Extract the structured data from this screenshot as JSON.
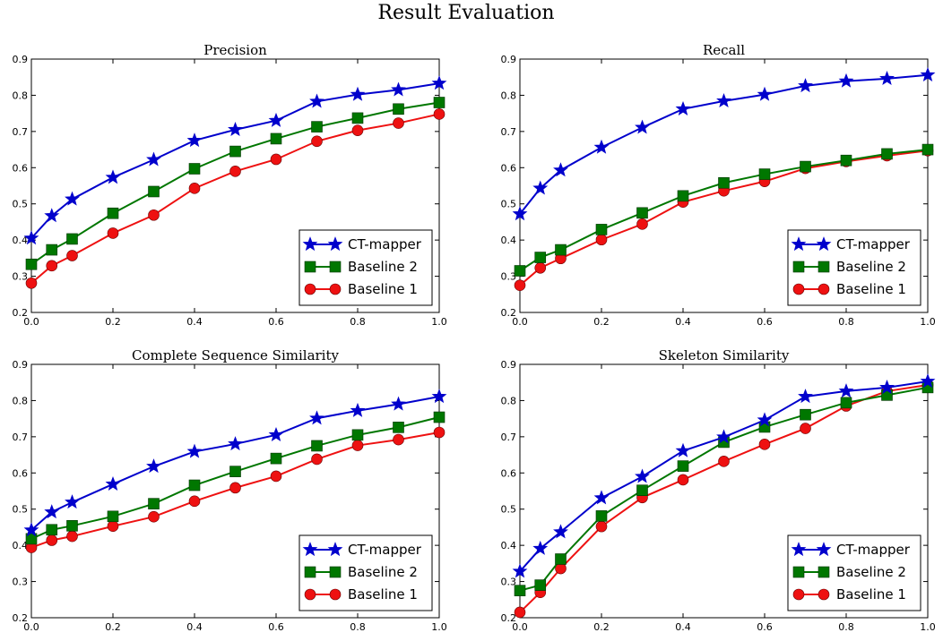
{
  "title": "Result Evaluation",
  "chart_data": [
    {
      "type": "line",
      "title": "Precision",
      "xlabel": "",
      "ylabel": "",
      "xlim": [
        0.0,
        1.0
      ],
      "ylim": [
        0.2,
        0.9
      ],
      "x": [
        0.0,
        0.05,
        0.1,
        0.2,
        0.3,
        0.4,
        0.5,
        0.6,
        0.7,
        0.8,
        0.9,
        1.0
      ],
      "xticks": [
        "0.0",
        "0.2",
        "0.4",
        "0.6",
        "0.8",
        "1.0"
      ],
      "yticks": [
        "0.2",
        "0.3",
        "0.4",
        "0.5",
        "0.6",
        "0.7",
        "0.8",
        "0.9"
      ],
      "legend_position": "lower-right",
      "series": [
        {
          "name": "CT-mapper",
          "color": "#0000cc",
          "marker": "star",
          "values": [
            0.405,
            0.467,
            0.513,
            0.573,
            0.622,
            0.675,
            0.705,
            0.73,
            0.783,
            0.802,
            0.815,
            0.833
          ]
        },
        {
          "name": "Baseline 2",
          "color": "#007700",
          "marker": "square",
          "values": [
            0.333,
            0.373,
            0.403,
            0.474,
            0.534,
            0.597,
            0.645,
            0.68,
            0.713,
            0.737,
            0.762,
            0.78
          ]
        },
        {
          "name": "Baseline 1",
          "color": "#ee1111",
          "marker": "circle",
          "values": [
            0.281,
            0.329,
            0.357,
            0.419,
            0.469,
            0.543,
            0.59,
            0.623,
            0.673,
            0.703,
            0.723,
            0.748
          ]
        }
      ]
    },
    {
      "type": "line",
      "title": "Recall",
      "xlabel": "",
      "ylabel": "",
      "xlim": [
        0.0,
        1.0
      ],
      "ylim": [
        0.2,
        0.9
      ],
      "x": [
        0.0,
        0.05,
        0.1,
        0.2,
        0.3,
        0.4,
        0.5,
        0.6,
        0.7,
        0.8,
        0.9,
        1.0
      ],
      "xticks": [
        "0.0",
        "0.2",
        "0.4",
        "0.6",
        "0.8",
        "1.0"
      ],
      "yticks": [
        "0.2",
        "0.3",
        "0.4",
        "0.5",
        "0.6",
        "0.7",
        "0.8",
        "0.9"
      ],
      "legend_position": "lower-right",
      "series": [
        {
          "name": "CT-mapper",
          "color": "#0000cc",
          "marker": "star",
          "values": [
            0.472,
            0.543,
            0.593,
            0.656,
            0.711,
            0.762,
            0.784,
            0.802,
            0.826,
            0.839,
            0.846,
            0.856
          ]
        },
        {
          "name": "Baseline 2",
          "color": "#007700",
          "marker": "square",
          "values": [
            0.315,
            0.352,
            0.373,
            0.429,
            0.475,
            0.522,
            0.558,
            0.582,
            0.603,
            0.62,
            0.638,
            0.65
          ]
        },
        {
          "name": "Baseline 1",
          "color": "#ee1111",
          "marker": "circle",
          "values": [
            0.275,
            0.323,
            0.349,
            0.401,
            0.444,
            0.505,
            0.536,
            0.562,
            0.598,
            0.617,
            0.633,
            0.647
          ]
        }
      ]
    },
    {
      "type": "line",
      "title": "Complete Sequence Similarity",
      "xlabel": "",
      "ylabel": "",
      "xlim": [
        0.0,
        1.0
      ],
      "ylim": [
        0.2,
        0.9
      ],
      "x": [
        0.0,
        0.05,
        0.1,
        0.2,
        0.3,
        0.4,
        0.5,
        0.6,
        0.7,
        0.8,
        0.9,
        1.0
      ],
      "xticks": [
        "0.0",
        "0.2",
        "0.4",
        "0.6",
        "0.8",
        "1.0"
      ],
      "yticks": [
        "0.2",
        "0.3",
        "0.4",
        "0.5",
        "0.6",
        "0.7",
        "0.8",
        "0.9"
      ],
      "legend_position": "lower-right",
      "series": [
        {
          "name": "CT-mapper",
          "color": "#0000cc",
          "marker": "star",
          "values": [
            0.442,
            0.492,
            0.519,
            0.569,
            0.618,
            0.659,
            0.68,
            0.705,
            0.751,
            0.772,
            0.79,
            0.811
          ]
        },
        {
          "name": "Baseline 2",
          "color": "#007700",
          "marker": "square",
          "values": [
            0.418,
            0.443,
            0.454,
            0.48,
            0.515,
            0.566,
            0.604,
            0.64,
            0.675,
            0.705,
            0.726,
            0.754
          ]
        },
        {
          "name": "Baseline 1",
          "color": "#ee1111",
          "marker": "circle",
          "values": [
            0.394,
            0.414,
            0.425,
            0.453,
            0.479,
            0.522,
            0.559,
            0.591,
            0.638,
            0.676,
            0.692,
            0.712
          ]
        }
      ]
    },
    {
      "type": "line",
      "title": "Skeleton Similarity",
      "xlabel": "",
      "ylabel": "",
      "xlim": [
        0.0,
        1.0
      ],
      "ylim": [
        0.2,
        0.9
      ],
      "x": [
        0.0,
        0.05,
        0.1,
        0.2,
        0.3,
        0.4,
        0.5,
        0.6,
        0.7,
        0.8,
        0.9,
        1.0
      ],
      "xticks": [
        "0.0",
        "0.2",
        "0.4",
        "0.6",
        "0.8",
        "1.0"
      ],
      "yticks": [
        "0.2",
        "0.3",
        "0.4",
        "0.5",
        "0.6",
        "0.7",
        "0.8",
        "0.9"
      ],
      "legend_position": "lower-right",
      "series": [
        {
          "name": "CT-mapper",
          "color": "#0000cc",
          "marker": "star",
          "values": [
            0.328,
            0.391,
            0.437,
            0.531,
            0.59,
            0.661,
            0.699,
            0.746,
            0.811,
            0.826,
            0.836,
            0.853
          ]
        },
        {
          "name": "Baseline 2",
          "color": "#007700",
          "marker": "square",
          "values": [
            0.275,
            0.29,
            0.362,
            0.481,
            0.552,
            0.619,
            0.685,
            0.727,
            0.761,
            0.794,
            0.815,
            0.836
          ]
        },
        {
          "name": "Baseline 1",
          "color": "#ee1111",
          "marker": "circle",
          "values": [
            0.215,
            0.27,
            0.336,
            0.452,
            0.532,
            0.581,
            0.632,
            0.679,
            0.723,
            0.785,
            0.826,
            0.843
          ]
        }
      ]
    }
  ]
}
